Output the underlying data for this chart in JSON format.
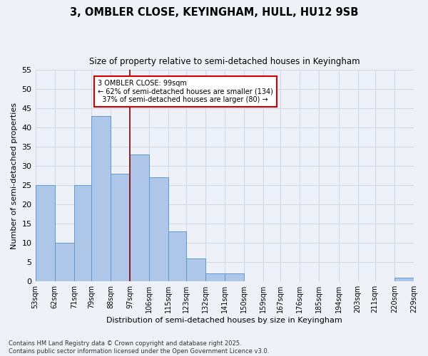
{
  "title": "3, OMBLER CLOSE, KEYINGHAM, HULL, HU12 9SB",
  "subtitle": "Size of property relative to semi-detached houses in Keyingham",
  "xlabel": "Distribution of semi-detached houses by size in Keyingham",
  "ylabel": "Number of semi-detached properties",
  "footnote": "Contains HM Land Registry data © Crown copyright and database right 2025.\nContains public sector information licensed under the Open Government Licence v3.0.",
  "bins": [
    53,
    62,
    71,
    79,
    88,
    97,
    106,
    115,
    123,
    132,
    141,
    150,
    159,
    167,
    176,
    185,
    194,
    203,
    211,
    220,
    229
  ],
  "bin_labels": [
    "53sqm",
    "62sqm",
    "71sqm",
    "79sqm",
    "88sqm",
    "97sqm",
    "106sqm",
    "115sqm",
    "123sqm",
    "132sqm",
    "141sqm",
    "150sqm",
    "159sqm",
    "167sqm",
    "176sqm",
    "185sqm",
    "194sqm",
    "203sqm",
    "211sqm",
    "220sqm",
    "229sqm"
  ],
  "counts": [
    25,
    10,
    25,
    43,
    28,
    33,
    27,
    13,
    6,
    2,
    2,
    0,
    0,
    0,
    0,
    0,
    0,
    0,
    0,
    1,
    0
  ],
  "bar_color": "#aec6e8",
  "bar_edge_color": "#5b9bd5",
  "grid_color": "#d0d8e8",
  "vline_x": 97,
  "vline_color": "#8b0000",
  "annotation_text": "3 OMBLER CLOSE: 99sqm\n← 62% of semi-detached houses are smaller (134)\n  37% of semi-detached houses are larger (80) →",
  "annotation_box_color": "#ffffff",
  "annotation_box_edge": "#cc0000",
  "ylim": [
    0,
    55
  ],
  "yticks": [
    0,
    5,
    10,
    15,
    20,
    25,
    30,
    35,
    40,
    45,
    50,
    55
  ],
  "background_color": "#eef2f8"
}
